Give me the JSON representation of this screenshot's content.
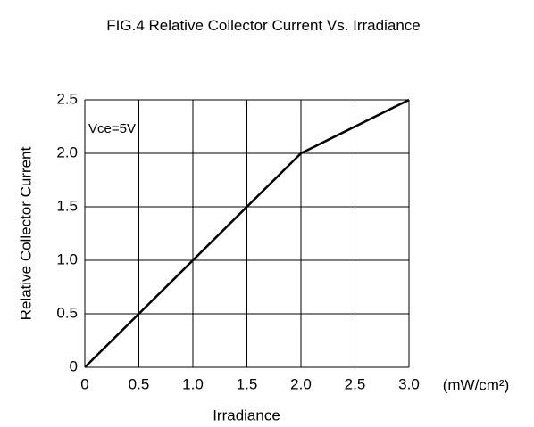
{
  "chart_data": {
    "type": "line",
    "title": "FIG.4 Relative Collector Current Vs. Irradiance",
    "x_label": "Irradiance",
    "x_unit": "(mW/cm²)",
    "y_label": "Relative Collector Current",
    "annotation": "Vce=5V",
    "x": [
      0,
      2,
      3
    ],
    "series": [
      {
        "values": [
          0,
          2,
          2.5
        ],
        "color": "#000000"
      }
    ],
    "xlim": [
      0,
      3
    ],
    "ylim": [
      0,
      2.5
    ],
    "xticks": [
      0,
      0.5,
      {
        "value": 1,
        "label": "1.0"
      },
      1.5,
      {
        "value": 2,
        "label": "2.0"
      },
      2.5,
      {
        "value": 3,
        "label": "3.0"
      }
    ],
    "yticks": [
      0,
      0.5,
      {
        "value": 1,
        "label": "1.0"
      },
      1.5,
      {
        "value": 2,
        "label": "2.0"
      },
      2.5
    ],
    "grid": true
  }
}
